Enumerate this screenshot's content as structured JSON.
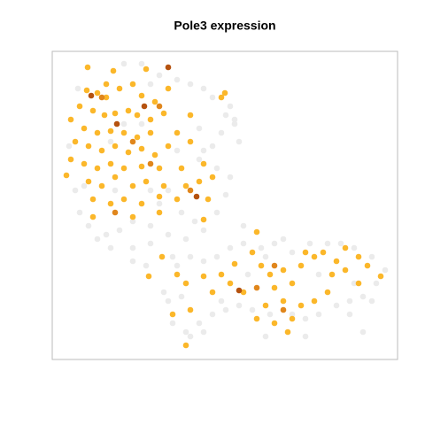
{
  "chart_data": {
    "type": "scatter",
    "title": "Pole3 expression",
    "xlim": [
      59,
      449
    ],
    "ylim": [
      406,
      58
    ],
    "series": [
      {
        "color": "#ebebeb",
        "x": [
          140,
          160,
          180,
          200,
          215,
          230,
          240,
          260,
          265,
          250,
          240,
          230,
          225,
          245,
          260,
          255,
          245,
          230,
          210,
          190,
          170,
          150,
          135,
          120,
          100,
          90,
          85,
          78,
          88,
          140,
          160,
          200,
          205,
          220,
          150,
          170,
          195,
          200,
          215,
          230,
          245,
          260,
          275,
          295,
          310,
          320,
          330,
          350,
          370,
          385,
          400,
          420,
          435,
          425,
          410,
          395,
          380,
          360,
          345,
          330,
          305,
          285,
          270,
          255,
          240,
          225,
          210,
          195,
          185,
          190,
          205,
          250,
          280,
          300,
          360,
          400,
          420,
          230,
          215,
          345,
          300,
          410,
          395,
          165,
          150,
          125,
          110,
          180,
          190,
          170,
          130,
          275,
          265,
          270,
          225,
          125,
          95,
          170,
          255
        ],
        "values": [
          72,
          72,
          85,
          90,
          95,
          100,
          110,
          120,
          140,
          150,
          165,
          170,
          180,
          190,
          200,
          220,
          240,
          260,
          270,
          265,
          255,
          250,
          260,
          265,
          255,
          240,
          215,
          165,
          100,
          140,
          140,
          170,
          240,
          250,
          280,
          275,
          290,
          300,
          290,
          295,
          290,
          280,
          275,
          280,
          275,
          270,
          285,
          275,
          275,
          275,
          280,
          290,
          305,
          320,
          335,
          340,
          345,
          355,
          360,
          355,
          355,
          350,
          345,
          350,
          355,
          365,
          375,
          365,
          330,
          340,
          335,
          340,
          310,
          290,
          310,
          320,
          340,
          375,
          380,
          380,
          380,
          375,
          355,
          300,
          295,
          280,
          270,
          230,
          215,
          215,
          215,
          255,
          135,
          160,
          145,
          160,
          210,
          95,
          130
        ]
      },
      {
        "color": "#fbb72a",
        "x": [
          99,
          128,
          98,
          110,
          120,
          135,
          150,
          160,
          175,
          90,
          105,
          118,
          130,
          145,
          155,
          170,
          185,
          80,
          95,
          110,
          125,
          140,
          155,
          170,
          200,
          85,
          100,
          115,
          130,
          145,
          160,
          175,
          190,
          215,
          80,
          95,
          110,
          125,
          140,
          160,
          180,
          205,
          230,
          100,
          115,
          130,
          150,
          165,
          185,
          210,
          225,
          240,
          105,
          125,
          140,
          160,
          180,
          200,
          235,
          105,
          150,
          180,
          230,
          254,
          215,
          120,
          165,
          75,
          250,
          190,
          183,
          290,
          200,
          210,
          230,
          250,
          265,
          275,
          295,
          305,
          310,
          320,
          330,
          340,
          355,
          365,
          375,
          390,
          405,
          415,
          430,
          390,
          300,
          320,
          340,
          355,
          370,
          310,
          325,
          290,
          210,
          195,
          215,
          260,
          285,
          240,
          405,
          380,
          345,
          168,
          330
        ],
        "values": [
          76,
          80,
          102,
          105,
          110,
          100,
          95,
          108,
          115,
          120,
          125,
          130,
          128,
          125,
          130,
          135,
          128,
          135,
          145,
          150,
          148,
          150,
          155,
          150,
          150,
          160,
          165,
          170,
          165,
          172,
          168,
          175,
          165,
          160,
          180,
          185,
          190,
          185,
          190,
          188,
          190,
          190,
          185,
          205,
          210,
          200,
          210,
          205,
          210,
          210,
          205,
          200,
          225,
          230,
          225,
          230,
          222,
          225,
          225,
          245,
          245,
          240,
          248,
          105,
          130,
          95,
          78,
          198,
          110,
          100,
          290,
          262,
          310,
          320,
          312,
          310,
          298,
          330,
          300,
          310,
          325,
          305,
          320,
          300,
          290,
          285,
          310,
          305,
          290,
          300,
          312,
          280,
          345,
          340,
          345,
          340,
          330,
          365,
          375,
          360,
          390,
          355,
          350,
          320,
          285,
          330,
          320,
          295,
          285,
          312,
          360
        ]
      },
      {
        "color": "#e0861c",
        "x": [
          115,
          170,
          150,
          215,
          290,
          320,
          180,
          130,
          310
        ],
        "values": [
          110,
          185,
          160,
          215,
          325,
          350,
          120,
          240,
          300
        ]
      },
      {
        "color": "#b5520f",
        "x": [
          190,
          103,
          132,
          270,
          222,
          163
        ],
        "values": [
          76,
          108,
          140,
          328,
          222,
          120
        ]
      }
    ]
  }
}
